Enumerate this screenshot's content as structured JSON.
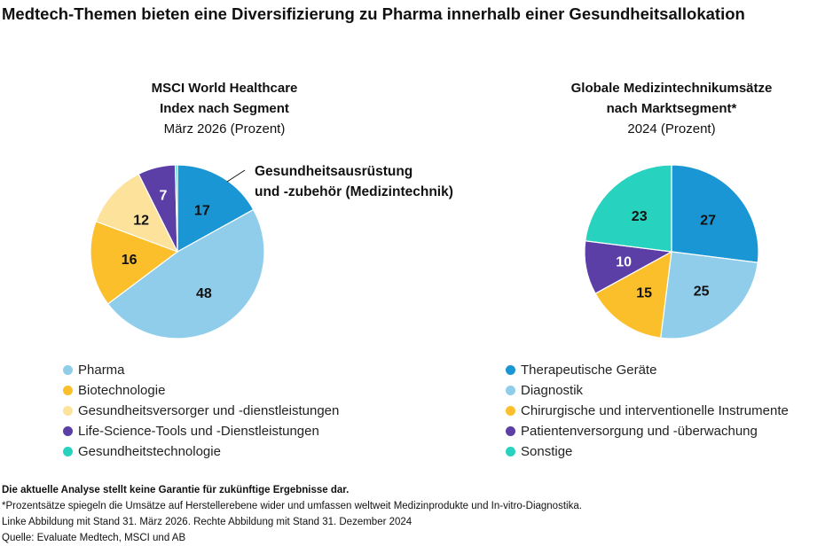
{
  "title": "Medtech-Themen bieten eine Diversifizierung zu Pharma innerhalb einer Gesundheitsallokation",
  "chart_data": [
    {
      "type": "pie",
      "title": "MSCI World Healthcare Index nach Segment",
      "title_lines": [
        "MSCI World Healthcare",
        "Index nach Segment"
      ],
      "subtitle": "März 2026 (Prozent)",
      "annotation": [
        "Gesundheitsausrüstung",
        "und -zubehör (Medizintechnik)"
      ],
      "slices": [
        {
          "label": "Gesundheitsausrüstung und -zubehör (Medizintechnik)",
          "value": 17,
          "color": "#1a96d4",
          "text": "17"
        },
        {
          "label": "Pharma",
          "value": 48,
          "color": "#90cdeb",
          "text": "48"
        },
        {
          "label": "Biotechnologie",
          "value": 16,
          "color": "#fbbf2c",
          "text": "16"
        },
        {
          "label": "Gesundheitsversorger und -dienstleistungen",
          "value": 12,
          "color": "#fde29c",
          "text": "12"
        },
        {
          "label": "Life-Science-Tools und -Dienstleistungen",
          "value": 7,
          "color": "#5b3fa6",
          "text": "7"
        },
        {
          "label": "Gesundheitstechnologie",
          "value": 0.4,
          "color": "#27d3bf",
          "text": ""
        }
      ],
      "legend": [
        "Pharma",
        "Biotechnologie",
        "Gesundheitsversorger und -dienstleistungen",
        "Life-Science-Tools und -Dienstleistungen",
        "Gesundheitstechnologie"
      ],
      "legend_colors": [
        "#90cdeb",
        "#fbbf2c",
        "#fde29c",
        "#5b3fa6",
        "#27d3bf"
      ]
    },
    {
      "type": "pie",
      "title": "Globale Medizintechnikumsätze nach Marktsegment*",
      "title_lines": [
        "Globale Medizintechnikumsätze",
        "nach Marktsegment*"
      ],
      "subtitle": "2024 (Prozent)",
      "slices": [
        {
          "label": "Therapeutische Geräte",
          "value": 27,
          "color": "#1a96d4",
          "text": "27"
        },
        {
          "label": "Diagnostik",
          "value": 25,
          "color": "#90cdeb",
          "text": "25"
        },
        {
          "label": "Chirurgische und interventionelle Instrumente",
          "value": 15,
          "color": "#fbbf2c",
          "text": "15"
        },
        {
          "label": "Patientenversorgung und -überwachung",
          "value": 10,
          "color": "#5b3fa6",
          "text": "10"
        },
        {
          "label": "Sonstige",
          "value": 23,
          "color": "#27d3bf",
          "text": "23"
        }
      ],
      "legend": [
        "Therapeutische Geräte",
        "Diagnostik",
        "Chirurgische und interventionelle Instrumente",
        "Patientenversorgung und -überwachung",
        "Sonstige"
      ],
      "legend_colors": [
        "#1a96d4",
        "#90cdeb",
        "#fbbf2c",
        "#5b3fa6",
        "#27d3bf"
      ]
    }
  ],
  "notes": {
    "disclaimer": "Die aktuelle Analyse stellt keine Garantie für zukünftige Ergebnisse dar.",
    "footnote": "*Prozentsätze spiegeln die Umsätze auf Herstellerebene wider und umfassen weltweit Medizinprodukte und In-vitro-Diagnostika.",
    "dates": "Linke Abbildung mit Stand 31. März 2026. Rechte Abbildung mit Stand 31. Dezember 2024",
    "source": "Quelle: Evaluate Medtech, MSCI und AB"
  }
}
